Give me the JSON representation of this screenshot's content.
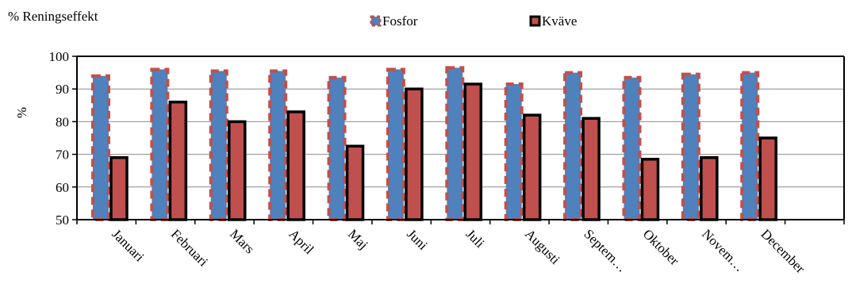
{
  "chart_data": {
    "type": "bar",
    "title": "% Reningseffekt",
    "ylabel": "%",
    "xlabel": "",
    "ylim": [
      50,
      100
    ],
    "yticks": [
      50,
      60,
      70,
      80,
      90,
      100
    ],
    "grid": true,
    "legend_position": "top-center",
    "categories": [
      "Januari",
      "Februari",
      "Mars",
      "April",
      "Maj",
      "Juni",
      "Juli",
      "Augusti",
      "Septem…",
      "Oktober",
      "Novem…",
      "December"
    ],
    "series": [
      {
        "name": "Fosfor",
        "color": "#4f81bd",
        "border_color": "#c0504d",
        "values": [
          94,
          96,
          95.5,
          95.5,
          93.5,
          96,
          96.5,
          91.5,
          95,
          93.5,
          94.5,
          95
        ]
      },
      {
        "name": "Kväve",
        "color": "#c0504d",
        "border_color": "#000000",
        "values": [
          69,
          86,
          80,
          83,
          72.5,
          90,
          91.5,
          82,
          81,
          68.5,
          69,
          75
        ]
      }
    ]
  }
}
